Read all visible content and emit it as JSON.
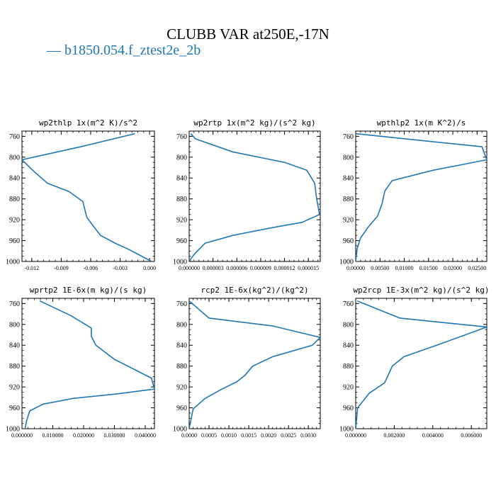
{
  "figure": {
    "title": "CLUBB VAR at250E,-17N",
    "legend_label": "b1850.054.f_ztest2e_2b",
    "series_color": "#1f77b4"
  },
  "chart_data": [
    {
      "type": "line",
      "title": "wp2thlp  1x(m^2 K)/s^2",
      "xlim": [
        -0.013,
        0.0005
      ],
      "ylim": [
        1000,
        750
      ],
      "x_ticks": [
        -0.012,
        -0.009,
        -0.006,
        -0.003,
        0.0
      ],
      "x_tick_labels": [
        "-0.012",
        "-0.009",
        "-0.006",
        "-0.003",
        "0.000"
      ],
      "y_ticks": [
        760,
        800,
        840,
        880,
        920,
        960,
        1000
      ],
      "y_tick_labels": [
        "760",
        "800",
        "840",
        "880",
        "920",
        "960",
        "1000"
      ],
      "series": [
        {
          "x": [
            -0.0015,
            -0.007,
            -0.013,
            -0.0118,
            -0.0104,
            -0.0082,
            -0.0068,
            -0.0064,
            -0.0059,
            -0.005,
            -0.0035,
            -0.002,
            -0.0008,
            -0.0001,
            0.0002
          ],
          "y": [
            755,
            780,
            805,
            827,
            850,
            866,
            885,
            915,
            928,
            950,
            965,
            978,
            990,
            997,
            1000
          ]
        }
      ]
    },
    {
      "type": "line",
      "title": "wp2rtp  1x(m^2 kg)/(s^2 kg)",
      "xlim": [
        0,
        1.65e-05
      ],
      "ylim": [
        1000,
        750
      ],
      "x_ticks": [
        0,
        3e-06,
        6e-06,
        9e-06,
        1.2e-05,
        1.5e-05
      ],
      "x_tick_labels": [
        "0.000000",
        "0.000003",
        "0.000006",
        "0.000009",
        "0.000012",
        "0.000015"
      ],
      "y_ticks": [
        760,
        800,
        840,
        880,
        920,
        960,
        1000
      ],
      "y_tick_labels": [
        "760",
        "800",
        "840",
        "880",
        "920",
        "960",
        "1000"
      ],
      "series": [
        {
          "x": [
            2e-07,
            8e-07,
            5.5e-06,
            1.2e-05,
            1.48e-05,
            1.58e-05,
            1.6e-05,
            1.64e-05,
            1.42e-05,
            1.05e-05,
            5.5e-06,
            2e-06,
            7e-07,
            2e-07,
            1e-07
          ],
          "y": [
            755,
            765,
            790,
            810,
            825,
            850,
            875,
            910,
            925,
            935,
            950,
            965,
            985,
            995,
            1000
          ]
        }
      ]
    },
    {
      "type": "line",
      "title": "wpthlp2  1x(m K^2)/s",
      "xlim": [
        0,
        0.027
      ],
      "ylim": [
        1000,
        750
      ],
      "x_ticks": [
        0,
        0.005,
        0.01,
        0.015,
        0.02,
        0.025
      ],
      "x_tick_labels": [
        "0.00000",
        "0.00500",
        "0.01000",
        "0.01500",
        "0.02000",
        "0.02500"
      ],
      "y_ticks": [
        760,
        800,
        840,
        880,
        920,
        960,
        1000
      ],
      "y_tick_labels": [
        "760",
        "800",
        "840",
        "880",
        "920",
        "960",
        "1000"
      ],
      "series": [
        {
          "x": [
            0.0,
            0.026,
            0.027,
            0.016,
            0.0075,
            0.006,
            0.0054,
            0.0045,
            0.0025,
            0.001,
            0.0003,
            0.0
          ],
          "y": [
            755,
            780,
            805,
            825,
            845,
            865,
            890,
            913,
            935,
            955,
            975,
            1000
          ]
        }
      ]
    },
    {
      "type": "line",
      "title": "wprtp2  1E-6x(m kg)/(s kg)",
      "xlim": [
        0,
        0.043
      ],
      "ylim": [
        1000,
        750
      ],
      "x_ticks": [
        0,
        0.01,
        0.02,
        0.03,
        0.04
      ],
      "x_tick_labels": [
        "0.000000",
        "0.010000",
        "0.020000",
        "0.030000",
        "0.040000"
      ],
      "y_ticks": [
        760,
        800,
        840,
        880,
        920,
        960,
        1000
      ],
      "y_tick_labels": [
        "760",
        "800",
        "840",
        "880",
        "920",
        "960",
        "1000"
      ],
      "series": [
        {
          "x": [
            0.0058,
            0.0158,
            0.0225,
            0.0225,
            0.024,
            0.03,
            0.042,
            0.043,
            0.0313,
            0.0165,
            0.0068,
            0.0025,
            0.0015,
            0.001
          ],
          "y": [
            755,
            783,
            807,
            823,
            840,
            867,
            903,
            924,
            933,
            942,
            953,
            966,
            985,
            1000
          ]
        }
      ]
    },
    {
      "type": "line",
      "title": "rcp2  1E-6x(kg^2)/(kg^2)",
      "xlim": [
        0,
        0.0033
      ],
      "ylim": [
        1000,
        750
      ],
      "x_ticks": [
        0,
        0.0005,
        0.001,
        0.0015,
        0.002,
        0.0025,
        0.003
      ],
      "x_tick_labels": [
        "0.0000",
        "0.0005",
        "0.0010",
        "0.0015",
        "0.0020",
        "0.0025",
        "0.0030"
      ],
      "y_ticks": [
        760,
        800,
        840,
        880,
        920,
        960,
        1000
      ],
      "y_tick_labels": [
        "760",
        "800",
        "840",
        "880",
        "920",
        "960",
        "1000"
      ],
      "series": [
        {
          "x": [
            0.0,
            0.0005,
            0.0021,
            0.0033,
            0.0031,
            0.0021,
            0.0016,
            0.0014,
            0.0012,
            0.0008,
            0.0004,
            0.0001,
            0.0
          ],
          "y": [
            755,
            788,
            803,
            825,
            840,
            862,
            880,
            898,
            910,
            925,
            942,
            962,
            1000
          ]
        }
      ]
    },
    {
      "type": "line",
      "title": "wp2rcp  1E-3x(m^2 kg)/(s^2 kg)",
      "xlim": [
        0,
        0.0068
      ],
      "ylim": [
        1000,
        750
      ],
      "x_ticks": [
        0,
        0.002,
        0.004,
        0.006
      ],
      "x_tick_labels": [
        "0.000000",
        "0.002000",
        "0.004000",
        "0.006000"
      ],
      "y_ticks": [
        760,
        800,
        840,
        880,
        920,
        960,
        1000
      ],
      "y_tick_labels": [
        "760",
        "800",
        "840",
        "880",
        "920",
        "960",
        "1000"
      ],
      "series": [
        {
          "x": [
            8e-05,
            0.0023,
            0.0068,
            0.0042,
            0.0025,
            0.0019,
            0.0015,
            0.0007,
            0.0001,
            0.0
          ],
          "y": [
            755,
            788,
            805,
            840,
            862,
            880,
            912,
            932,
            960,
            1000
          ]
        }
      ]
    }
  ]
}
